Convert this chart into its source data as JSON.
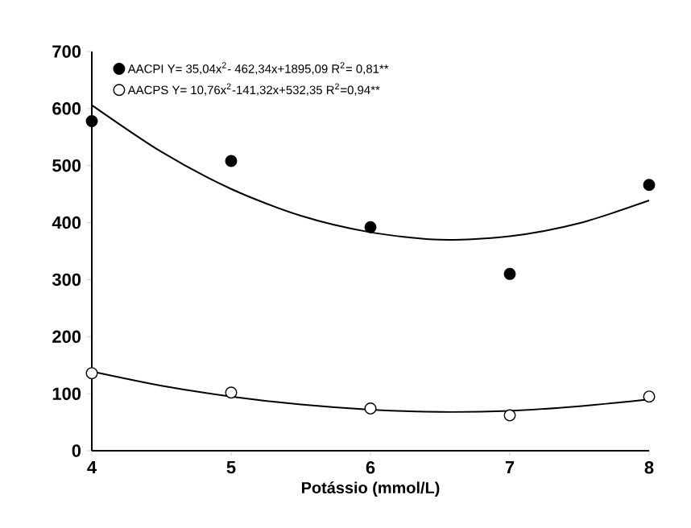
{
  "chart_data": {
    "type": "scatter",
    "xlabel": "Potássio (mmol/L)",
    "xlim": [
      4,
      8
    ],
    "xticks": [
      4,
      5,
      6,
      7,
      8
    ],
    "ylim": [
      0,
      700
    ],
    "yticks": [
      0,
      100,
      200,
      300,
      400,
      500,
      600,
      700
    ],
    "legend": "top left",
    "x": [
      4,
      5,
      6,
      7,
      8
    ],
    "series": [
      {
        "name": "AACPI  Y= 35,04x$^{2}$- 462,34x+1895,09  R$^{2}$= 0,81**",
        "color": "#000000",
        "marker": "circle",
        "values": [
          578,
          508,
          392,
          310,
          466
        ]
      },
      {
        "name": "AACPS  Y= 10,76x$^{2}$-141,32x+532,35  R$^{2}$=0,94**",
        "color": "#ffffff",
        "marker": "circle",
        "values": [
          136,
          102,
          74,
          62,
          95
        ]
      },
      {
        "type": "line",
        "color": "#000000",
        "marker": "none",
        "x": [
          4,
          4.5,
          5,
          5.5,
          6,
          6.5,
          7,
          7.5,
          8
        ],
        "values": [
          606,
          524,
          459,
          412,
          383,
          370,
          376,
          399,
          439
        ]
      },
      {
        "type": "line",
        "color": "#000000",
        "marker": "none",
        "x": [
          4,
          4.5,
          5,
          5.5,
          6,
          6.5,
          7,
          7.5,
          8
        ],
        "values": [
          139,
          114,
          95,
          81,
          72,
          68,
          70,
          78,
          90
        ]
      }
    ]
  }
}
